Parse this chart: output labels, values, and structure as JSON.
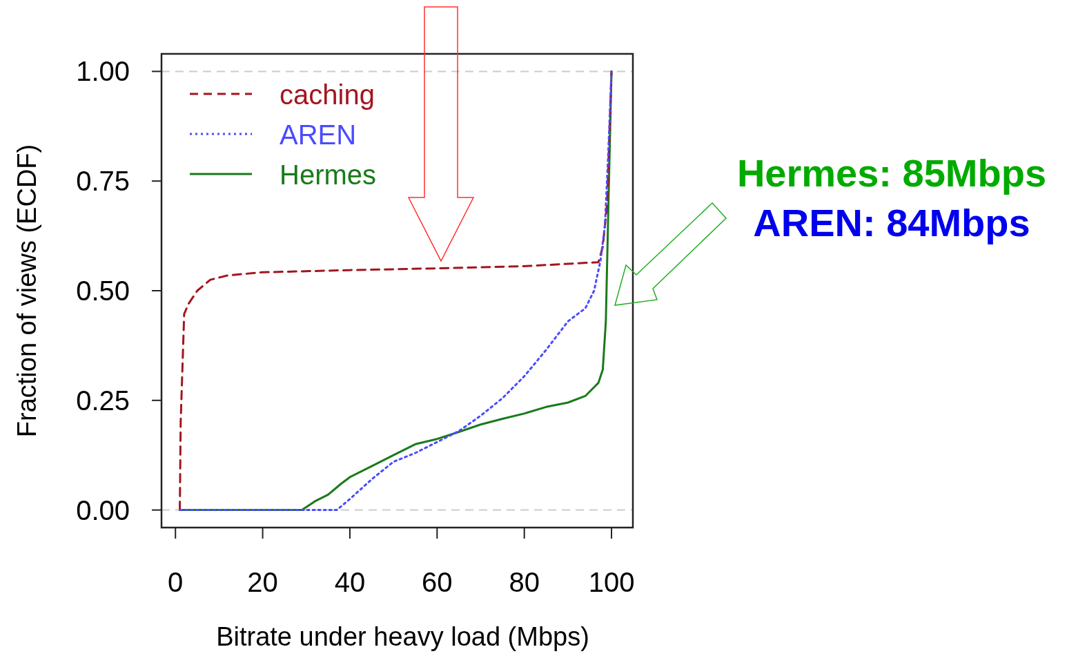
{
  "chart_data": {
    "type": "line",
    "xlabel": "Bitrate under heavy load (Mbps)",
    "ylabel": "Fraction of views (ECDF)",
    "xlim": [
      -3.2,
      104.9
    ],
    "ylim": [
      -0.04,
      1.04
    ],
    "xticks": [
      0,
      20,
      40,
      60,
      80,
      100
    ],
    "yticks": [
      {
        "value": 0,
        "label": "0.00"
      },
      {
        "value": 0.25,
        "label": "0.25"
      },
      {
        "value": 0.5,
        "label": "0.50"
      },
      {
        "value": 0.75,
        "label": "0.75"
      },
      {
        "value": 1,
        "label": "1.00"
      }
    ],
    "grid": false,
    "legend": "top left",
    "ref_lines": [
      {
        "axis": "y",
        "value": 0,
        "color": "#cccccc",
        "line_style": "dashed"
      },
      {
        "axis": "y",
        "value": 1,
        "color": "#cccccc",
        "line_style": "dashed"
      }
    ],
    "annotations": [
      "Hermes: 85Mbps",
      "AREN: 84Mbps"
    ],
    "series": [
      {
        "name": "caching",
        "color": "#a3151f",
        "line_style": "dashed",
        "x": [
          1,
          1.2,
          2,
          3,
          5,
          8,
          12,
          20,
          40,
          60,
          80,
          97,
          98,
          99,
          100
        ],
        "values": [
          0,
          0.2,
          0.447,
          0.47,
          0.5,
          0.525,
          0.535,
          0.542,
          0.547,
          0.551,
          0.556,
          0.565,
          0.6,
          0.7,
          1
        ]
      },
      {
        "name": "AREN",
        "color": "#4b4bff",
        "line_style": "dotted",
        "x": [
          1,
          37,
          40,
          45,
          50,
          55,
          60,
          65,
          70,
          75,
          80,
          85,
          90,
          94,
          96,
          97.5,
          98.5,
          99.2,
          100
        ],
        "values": [
          0,
          0,
          0.025,
          0.07,
          0.11,
          0.13,
          0.155,
          0.18,
          0.215,
          0.255,
          0.305,
          0.365,
          0.43,
          0.46,
          0.5,
          0.57,
          0.65,
          0.8,
          1
        ]
      },
      {
        "name": "Hermes",
        "color": "#1a7a1a",
        "line_style": "solid",
        "x": [
          1,
          29,
          32,
          35,
          38,
          40,
          45,
          50,
          55,
          60,
          65,
          70,
          75,
          80,
          85,
          90,
          94,
          96,
          97,
          98,
          98.7,
          99.3,
          100
        ],
        "values": [
          0,
          0,
          0.02,
          0.035,
          0.06,
          0.075,
          0.1,
          0.125,
          0.15,
          0.162,
          0.178,
          0.195,
          0.208,
          0.22,
          0.235,
          0.245,
          0.26,
          0.28,
          0.29,
          0.32,
          0.43,
          0.7,
          1
        ]
      }
    ]
  }
}
